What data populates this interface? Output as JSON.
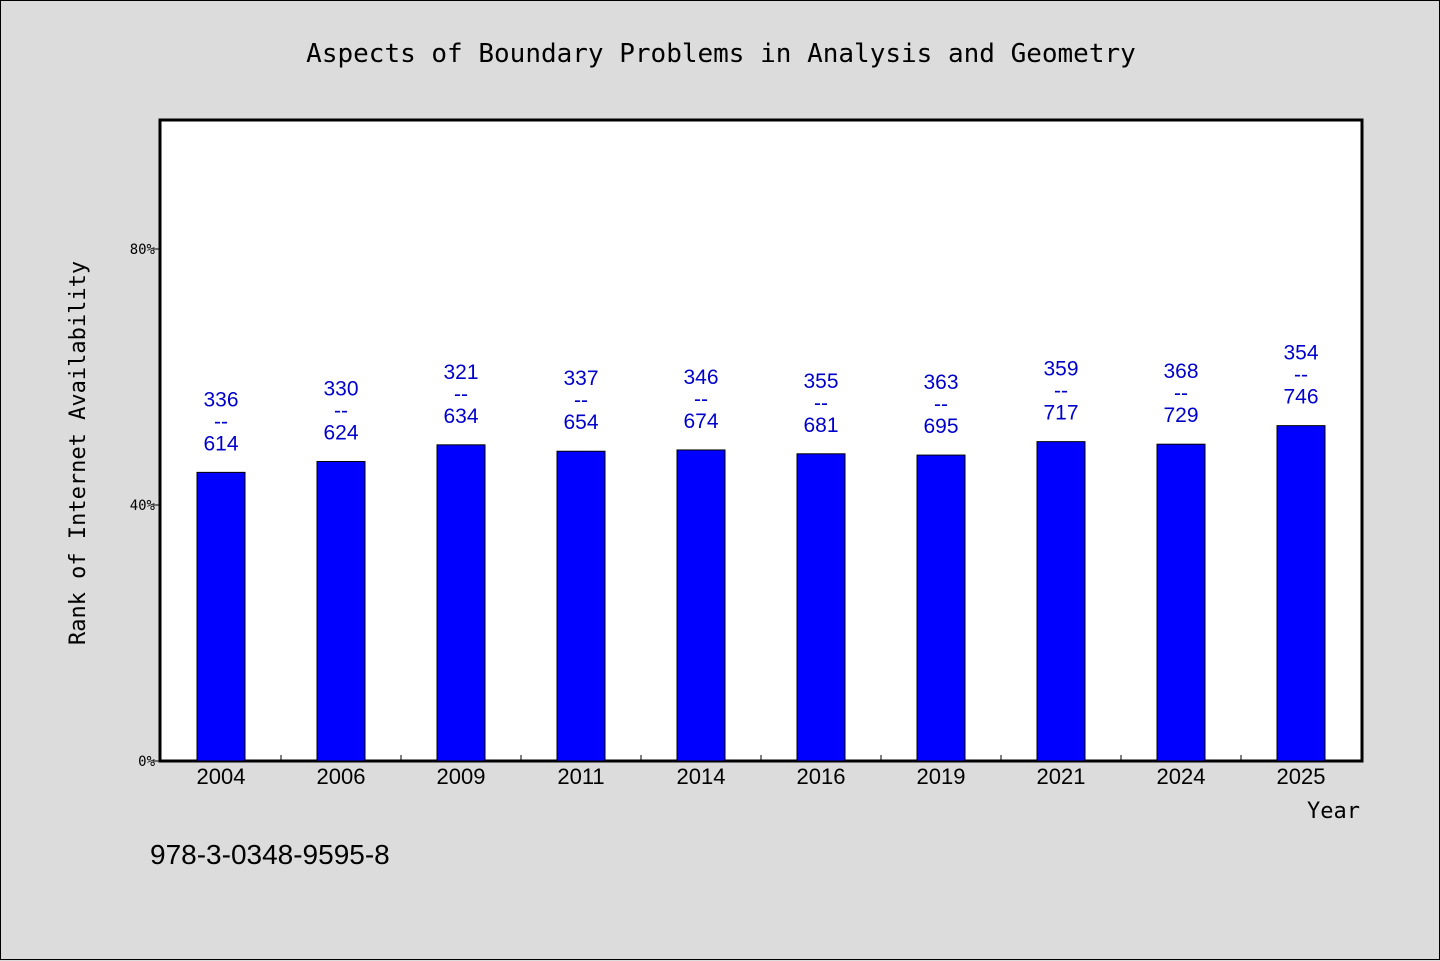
{
  "chart_data": {
    "type": "bar",
    "title": "Aspects of Boundary Problems in Analysis and Geometry",
    "xlabel": "Year",
    "ylabel": "Rank of Internet Availability",
    "ylim": [
      0,
      100
    ],
    "yticks": [
      {
        "value": 0,
        "label": "0%"
      },
      {
        "value": 40,
        "label": "40%"
      },
      {
        "value": 80,
        "label": "80%"
      }
    ],
    "grid": false,
    "bar_color": "#0000ff",
    "label_color": "#0000cc",
    "categories": [
      "2004",
      "2006",
      "2009",
      "2011",
      "2014",
      "2016",
      "2019",
      "2021",
      "2024",
      "2025"
    ],
    "values": [
      45.1,
      46.8,
      49.4,
      48.4,
      48.6,
      48.0,
      47.8,
      49.9,
      49.5,
      52.4
    ],
    "labels": [
      [
        "336",
        "--",
        "614"
      ],
      [
        "330",
        "--",
        "624"
      ],
      [
        "321",
        "--",
        "634"
      ],
      [
        "337",
        "--",
        "654"
      ],
      [
        "346",
        "--",
        "674"
      ],
      [
        "355",
        "--",
        "681"
      ],
      [
        "363",
        "--",
        "695"
      ],
      [
        "359",
        "--",
        "717"
      ],
      [
        "368",
        "--",
        "729"
      ],
      [
        "354",
        "--",
        "746"
      ]
    ]
  },
  "footer": {
    "isbn": "978-3-0348-9595-8"
  }
}
